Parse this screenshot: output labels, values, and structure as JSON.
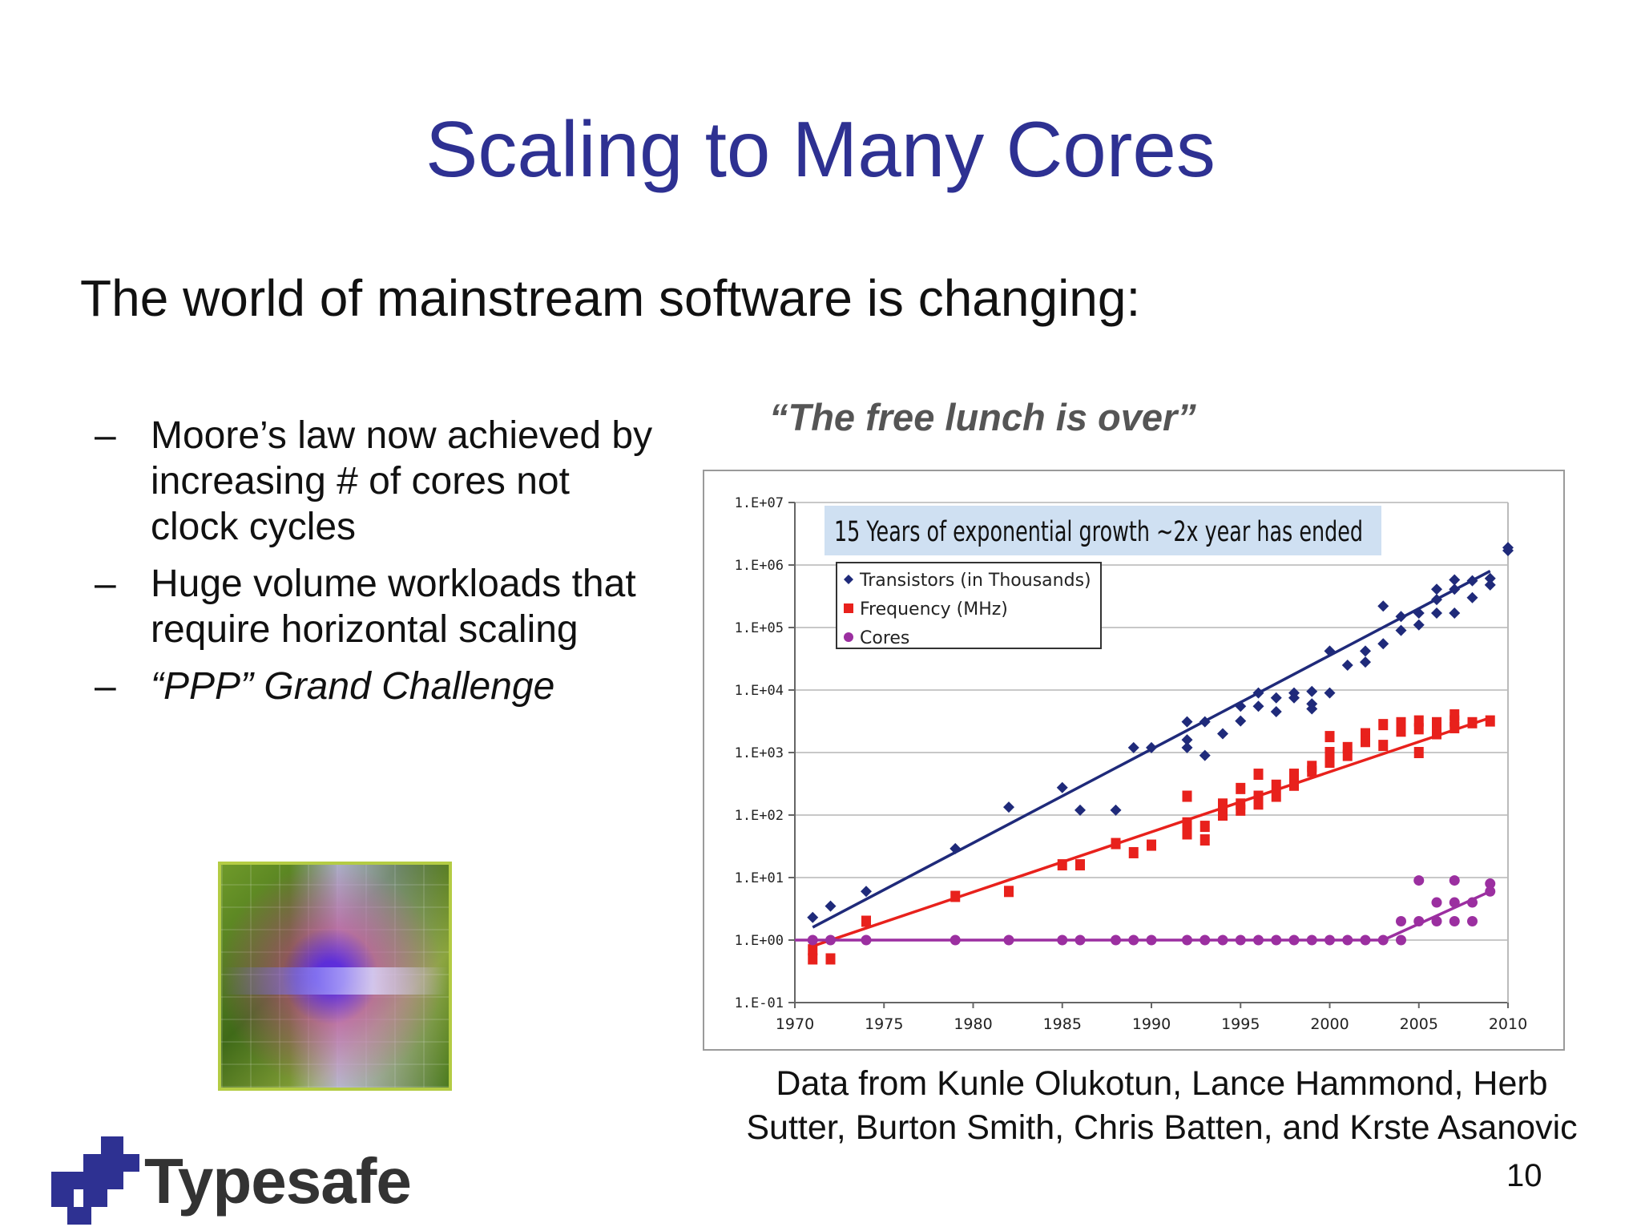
{
  "slide": {
    "title": "Scaling to Many Cores",
    "subtitle": "The world of mainstream software is changing:",
    "quote": "“The free lunch is over”",
    "bullets": [
      {
        "dash": "–",
        "text": "Moore’s law now achieved by increasing # of cores not clock cycles",
        "italic": false
      },
      {
        "dash": "–",
        "text": "Huge volume workloads that require horizontal scaling",
        "italic": false
      },
      {
        "dash": "–",
        "text": "“PPP” Grand Challenge",
        "italic": true
      }
    ],
    "credit": "Data from Kunle Olukotun, Lance Hammond, Herb Sutter, Burton Smith, Chris Batten, and Krste Asanovic",
    "page_number": "10",
    "logo_text": "Typesafe",
    "colors": {
      "title": "#2e3192",
      "logo": "#2e3192"
    }
  },
  "chart_data": {
    "type": "scatter",
    "title": "15 Years of exponential growth ~2x year has ended",
    "xlabel": "",
    "ylabel": "",
    "y_scale": "log",
    "xlim": [
      1970,
      2010
    ],
    "ylim": [
      0.1,
      10000000
    ],
    "x_ticks": [
      "1970",
      "1975",
      "1980",
      "1985",
      "1990",
      "1995",
      "2000",
      "2005",
      "2010"
    ],
    "y_ticks": [
      {
        "value": 10000000,
        "label": "1.E+07"
      },
      {
        "value": 1000000,
        "label": "1.E+06"
      },
      {
        "value": 100000,
        "label": "1.E+05"
      },
      {
        "value": 10000,
        "label": "1.E+04"
      },
      {
        "value": 1000,
        "label": "1.E+03"
      },
      {
        "value": 100,
        "label": "1.E+02"
      },
      {
        "value": 10,
        "label": "1.E+01"
      },
      {
        "value": 1,
        "label": "1.E+00"
      },
      {
        "value": 0.1,
        "label": "1.E-01"
      }
    ],
    "grid": true,
    "legend_position": "top-left",
    "series": [
      {
        "name": "Transistors (in Thousands)",
        "color": "#1f2a7a",
        "marker": "diamond",
        "trend": {
          "x": [
            1971,
            2009
          ],
          "y": [
            1.6,
            800000
          ]
        },
        "points": [
          [
            1971,
            2.3
          ],
          [
            1972,
            3.5
          ],
          [
            1974,
            6
          ],
          [
            1979,
            29
          ],
          [
            1982,
            134
          ],
          [
            1985,
            275
          ],
          [
            1986,
            120
          ],
          [
            1988,
            120
          ],
          [
            1989,
            1200
          ],
          [
            1990,
            1200
          ],
          [
            1992,
            3100
          ],
          [
            1992,
            1200
          ],
          [
            1992,
            1600
          ],
          [
            1993,
            3100
          ],
          [
            1993,
            900
          ],
          [
            1994,
            2000
          ],
          [
            1995,
            5500
          ],
          [
            1995,
            3200
          ],
          [
            1996,
            9000
          ],
          [
            1996,
            5500
          ],
          [
            1997,
            7500
          ],
          [
            1997,
            4500
          ],
          [
            1998,
            9000
          ],
          [
            1998,
            7500
          ],
          [
            1999,
            9500
          ],
          [
            1999,
            6000
          ],
          [
            1999,
            5000
          ],
          [
            2000,
            9000
          ],
          [
            2000,
            42000
          ],
          [
            2001,
            25000
          ],
          [
            2002,
            42000
          ],
          [
            2002,
            28000
          ],
          [
            2003,
            220000
          ],
          [
            2003,
            55000
          ],
          [
            2004,
            150000
          ],
          [
            2004,
            90000
          ],
          [
            2005,
            170000
          ],
          [
            2005,
            110000
          ],
          [
            2006,
            410000
          ],
          [
            2006,
            280000
          ],
          [
            2006,
            170000
          ],
          [
            2007,
            580000
          ],
          [
            2007,
            410000
          ],
          [
            2007,
            170000
          ],
          [
            2008,
            560000
          ],
          [
            2008,
            300000
          ],
          [
            2009,
            610000
          ],
          [
            2009,
            480000
          ],
          [
            2010,
            1700000
          ],
          [
            2010,
            1900000
          ]
        ]
      },
      {
        "name": "Frequency (MHz)",
        "color": "#e8211c",
        "marker": "square",
        "trend": {
          "x": [
            1971,
            2009
          ],
          "y": [
            0.8,
            3600
          ]
        },
        "points": [
          [
            1971,
            0.7
          ],
          [
            1971,
            0.5
          ],
          [
            1972,
            0.5
          ],
          [
            1974,
            2
          ],
          [
            1979,
            5
          ],
          [
            1982,
            6
          ],
          [
            1985,
            16
          ],
          [
            1986,
            16
          ],
          [
            1988,
            35
          ],
          [
            1989,
            25
          ],
          [
            1990,
            33
          ],
          [
            1992,
            75
          ],
          [
            1992,
            50
          ],
          [
            1992,
            200
          ],
          [
            1993,
            66
          ],
          [
            1993,
            40
          ],
          [
            1994,
            100
          ],
          [
            1994,
            150
          ],
          [
            1995,
            150
          ],
          [
            1995,
            266
          ],
          [
            1995,
            120
          ],
          [
            1996,
            200
          ],
          [
            1996,
            150
          ],
          [
            1996,
            450
          ],
          [
            1997,
            300
          ],
          [
            1997,
            200
          ],
          [
            1998,
            450
          ],
          [
            1998,
            300
          ],
          [
            1999,
            500
          ],
          [
            1999,
            600
          ],
          [
            2000,
            700
          ],
          [
            2000,
            1000
          ],
          [
            2000,
            1800
          ],
          [
            2001,
            1200
          ],
          [
            2001,
            900
          ],
          [
            2002,
            2000
          ],
          [
            2002,
            1500
          ],
          [
            2003,
            2800
          ],
          [
            2003,
            1300
          ],
          [
            2004,
            3000
          ],
          [
            2004,
            2200
          ],
          [
            2005,
            3200
          ],
          [
            2005,
            2400
          ],
          [
            2005,
            1000
          ],
          [
            2006,
            3000
          ],
          [
            2006,
            2000
          ],
          [
            2007,
            3200
          ],
          [
            2007,
            2500
          ],
          [
            2007,
            4000
          ],
          [
            2008,
            3000
          ],
          [
            2009,
            3200
          ]
        ]
      },
      {
        "name": "Cores",
        "color": "#9b2fa0",
        "marker": "circle",
        "trend": {
          "x": [
            1970,
            2003,
            2009
          ],
          "y": [
            1,
            1,
            6
          ]
        },
        "points": [
          [
            1971,
            1
          ],
          [
            1972,
            1
          ],
          [
            1974,
            1
          ],
          [
            1979,
            1
          ],
          [
            1982,
            1
          ],
          [
            1985,
            1
          ],
          [
            1986,
            1
          ],
          [
            1988,
            1
          ],
          [
            1989,
            1
          ],
          [
            1990,
            1
          ],
          [
            1992,
            1
          ],
          [
            1993,
            1
          ],
          [
            1994,
            1
          ],
          [
            1995,
            1
          ],
          [
            1996,
            1
          ],
          [
            1997,
            1
          ],
          [
            1998,
            1
          ],
          [
            1999,
            1
          ],
          [
            2000,
            1
          ],
          [
            2001,
            1
          ],
          [
            2002,
            1
          ],
          [
            2003,
            1
          ],
          [
            2004,
            1
          ],
          [
            2004,
            2
          ],
          [
            2005,
            2
          ],
          [
            2005,
            9
          ],
          [
            2006,
            2
          ],
          [
            2006,
            4
          ],
          [
            2007,
            4
          ],
          [
            2007,
            9
          ],
          [
            2007,
            2
          ],
          [
            2008,
            2
          ],
          [
            2008,
            4
          ],
          [
            2009,
            8
          ],
          [
            2009,
            6
          ]
        ]
      }
    ]
  }
}
